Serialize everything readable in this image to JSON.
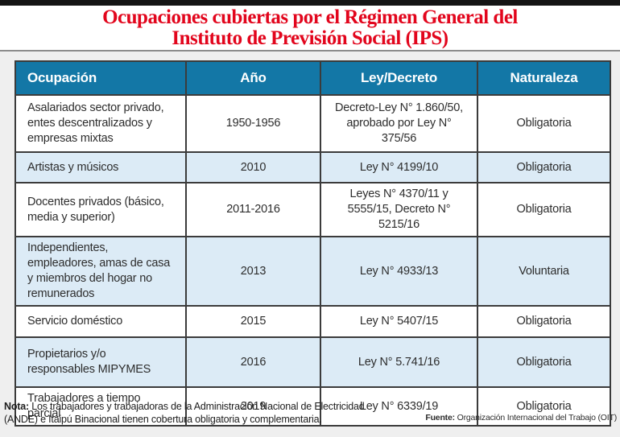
{
  "title": {
    "line1": "Ocupaciones cubiertas por el Régimen General del",
    "line2": "Instituto de Previsión Social (IPS)"
  },
  "colors": {
    "title_red": "#e2051c",
    "header_blue": "#1377a6",
    "alt_row_blue": "#dcebf6",
    "border_dark": "#3b3b3b",
    "top_bar_black": "#151515",
    "page_background": "#efefef"
  },
  "table": {
    "headers": [
      "Ocupación",
      "Año",
      "Ley/Decreto",
      "Naturaleza"
    ],
    "rows": [
      {
        "ocupacion": "Asalariados sector privado, entes descentralizados y empresas mixtas",
        "ano": "1950-1956",
        "ley": "Decreto-Ley N° 1.860/50, aprobado por Ley N° 375/56",
        "naturaleza": "Obligatoria"
      },
      {
        "ocupacion": "Artistas y músicos",
        "ano": "2010",
        "ley": "Ley N° 4199/10",
        "naturaleza": "Obligatoria"
      },
      {
        "ocupacion": "Docentes privados (básico, media y superior)",
        "ano": "2011-2016",
        "ley": "Leyes N° 4370/11 y 5555/15, Decreto N° 5215/16",
        "naturaleza": "Obligatoria"
      },
      {
        "ocupacion": "Independientes, empleadores, amas de casa y miembros del hogar no remunerados",
        "ano": "2013",
        "ley": "Ley N° 4933/13",
        "naturaleza": "Voluntaria"
      },
      {
        "ocupacion": "Servicio doméstico",
        "ano": "2015",
        "ley": "Ley N° 5407/15",
        "naturaleza": "Obligatoria"
      },
      {
        "ocupacion": "Propietarios y/o responsables MIPYMES",
        "ano": "2016",
        "ley": "Ley N° 5.741/16",
        "naturaleza": "Obligatoria"
      },
      {
        "ocupacion": "Trabajadores a tiempo parcial",
        "ano": "2019",
        "ley": "Ley N° 6339/19",
        "naturaleza": "Obligatoria"
      }
    ]
  },
  "footer": {
    "nota_label": "Nota:",
    "nota_text": " Los trabajadores y trabajadoras de la Administración Nacional de Electricidad (ANDE) e Itaipú Binacional tienen cobertura obligatoria y complementaria.",
    "fuente_label": "Fuente:",
    "fuente_text": " Organización Internacional del Trabajo (OIT)"
  }
}
